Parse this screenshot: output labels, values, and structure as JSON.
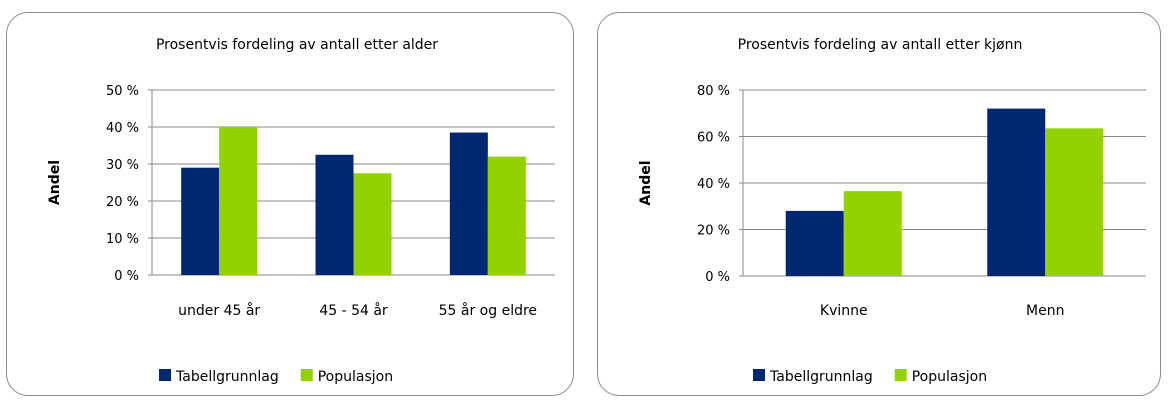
{
  "chart_data": [
    {
      "type": "bar",
      "title": "Prosentvis fordeling av antall etter alder",
      "xlabel": "",
      "ylabel": "Andel",
      "categories": [
        "under 45 år",
        "45 - 54 år",
        "55 år og eldre"
      ],
      "series": [
        {
          "name": "Tabellgrunnlag",
          "color": "#002870",
          "values": [
            29,
            32.5,
            38.5
          ]
        },
        {
          "name": "Populasjon",
          "color": "#93d200",
          "values": [
            40,
            27.5,
            32
          ]
        }
      ],
      "ylim": [
        0,
        50
      ],
      "yticks": [
        0,
        10,
        20,
        30,
        40,
        50
      ],
      "ytick_labels": [
        "0 %",
        "10 %",
        "20 %",
        "30 %",
        "40 %",
        "50 %"
      ],
      "grid": true,
      "legend_position": "bottom"
    },
    {
      "type": "bar",
      "title": "Prosentvis fordeling av antall etter kjønn",
      "xlabel": "",
      "ylabel": "Andel",
      "categories": [
        "Kvinne",
        "Menn"
      ],
      "series": [
        {
          "name": "Tabellgrunnlag",
          "color": "#002870",
          "values": [
            28,
            72
          ]
        },
        {
          "name": "Populasjon",
          "color": "#93d200",
          "values": [
            36.5,
            63.5
          ]
        }
      ],
      "ylim": [
        0,
        80
      ],
      "yticks": [
        0,
        20,
        40,
        60,
        80
      ],
      "ytick_labels": [
        "0 %",
        "20 %",
        "40 %",
        "60 %",
        "80 %"
      ],
      "grid": true,
      "legend_position": "bottom"
    }
  ]
}
